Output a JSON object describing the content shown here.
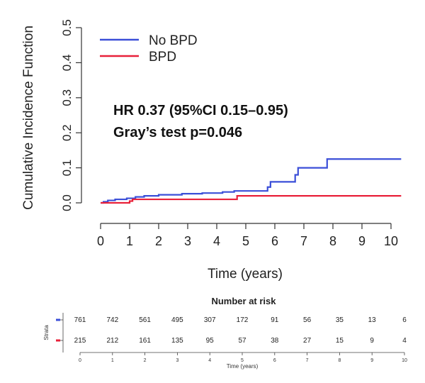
{
  "chart_data": {
    "type": "line",
    "ylabel": "Cumulative Incidence Function",
    "xlabel": "Time (years)",
    "xlim": [
      0,
      10.4
    ],
    "ylim": [
      0,
      0.5
    ],
    "x_ticks": [
      "0",
      "1",
      "2",
      "3",
      "4",
      "5",
      "6",
      "7",
      "8",
      "9",
      "10"
    ],
    "y_ticks": [
      "0.0",
      "0.1",
      "0.2",
      "0.3",
      "0.4",
      "0.5"
    ],
    "grid": false,
    "legend_position": "top-left",
    "annotations": [
      "HR 0.37 (95%CI 0.15–0.95)",
      "Gray’s test p=0.046"
    ],
    "series": [
      {
        "name": "No BPD",
        "color": "#3b4fd8",
        "step_points": [
          [
            0,
            0
          ],
          [
            0.1,
            0.003
          ],
          [
            0.25,
            0.007
          ],
          [
            0.5,
            0.01
          ],
          [
            0.9,
            0.013
          ],
          [
            1.2,
            0.017
          ],
          [
            1.5,
            0.02
          ],
          [
            2.0,
            0.023
          ],
          [
            2.8,
            0.026
          ],
          [
            3.5,
            0.028
          ],
          [
            4.2,
            0.031
          ],
          [
            4.6,
            0.034
          ],
          [
            5.75,
            0.045
          ],
          [
            5.85,
            0.06
          ],
          [
            6.7,
            0.08
          ],
          [
            6.8,
            0.1
          ],
          [
            7.8,
            0.125
          ],
          [
            10.35,
            0.125
          ]
        ]
      },
      {
        "name": "BPD",
        "color": "#e8213a",
        "step_points": [
          [
            0,
            0
          ],
          [
            1.0,
            0.005
          ],
          [
            1.1,
            0.01
          ],
          [
            4.7,
            0.02
          ],
          [
            10.35,
            0.02
          ]
        ]
      }
    ],
    "risk_table": {
      "title": "Number at risk",
      "strata_label": "Strata",
      "x_label": "Time (years)",
      "times": [
        "0",
        "1",
        "2",
        "3",
        "4",
        "5",
        "6",
        "7",
        "8",
        "9",
        "10"
      ],
      "rows": [
        {
          "color": "#3b4fd8",
          "values": [
            "761",
            "742",
            "561",
            "495",
            "307",
            "172",
            "91",
            "56",
            "35",
            "13",
            "6"
          ]
        },
        {
          "color": "#e8213a",
          "values": [
            "215",
            "212",
            "161",
            "135",
            "95",
            "57",
            "38",
            "27",
            "15",
            "9",
            "4"
          ]
        }
      ]
    }
  }
}
